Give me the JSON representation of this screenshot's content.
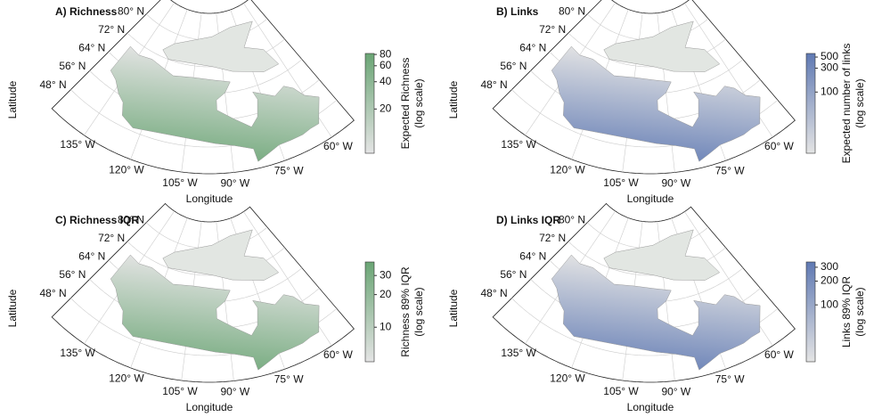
{
  "graticule": {
    "lat_ticks": [
      {
        "value": 48,
        "label": "48° N"
      },
      {
        "value": 56,
        "label": "56° N"
      },
      {
        "value": 64,
        "label": "64° N"
      },
      {
        "value": 72,
        "label": "72° N"
      },
      {
        "value": 80,
        "label": "80° N"
      }
    ],
    "lon_ticks": [
      {
        "value": -135,
        "label": "135° W"
      },
      {
        "value": -120,
        "label": "120° W"
      },
      {
        "value": -105,
        "label": "105° W"
      },
      {
        "value": -90,
        "label": "90° W"
      },
      {
        "value": -75,
        "label": "75° W"
      },
      {
        "value": -60,
        "label": "60° W"
      }
    ],
    "x_label": "Longitude",
    "y_label": "Latitude"
  },
  "panels": [
    {
      "title": "A) Richness",
      "colorbar_label": "Expected Richness",
      "colorbar_note": "(log scale)",
      "color": "#6aa574",
      "log_scale": true,
      "clim": [
        6.5,
        82
      ],
      "ticks": [
        20,
        40,
        60,
        80
      ]
    },
    {
      "title": "B) Links",
      "colorbar_label": "Expected number of links",
      "colorbar_note": "(log scale)",
      "color": "#5f79b3",
      "log_scale": true,
      "clim": [
        6,
        590
      ],
      "ticks": [
        100,
        300,
        500
      ]
    },
    {
      "title": "C) Richness IQR",
      "colorbar_label": "Richness 89% IQR",
      "colorbar_note": "(log scale)",
      "color": "#6aa574",
      "log_scale": true,
      "clim": [
        4.8,
        40
      ],
      "ticks": [
        10,
        20,
        30
      ]
    },
    {
      "title": "D) Links IQR",
      "colorbar_label": "Links 89% IQR",
      "colorbar_note": "(log scale)",
      "color": "#5f79b3",
      "log_scale": true,
      "clim": [
        19,
        350
      ],
      "ticks": [
        100,
        200,
        300
      ]
    }
  ]
}
